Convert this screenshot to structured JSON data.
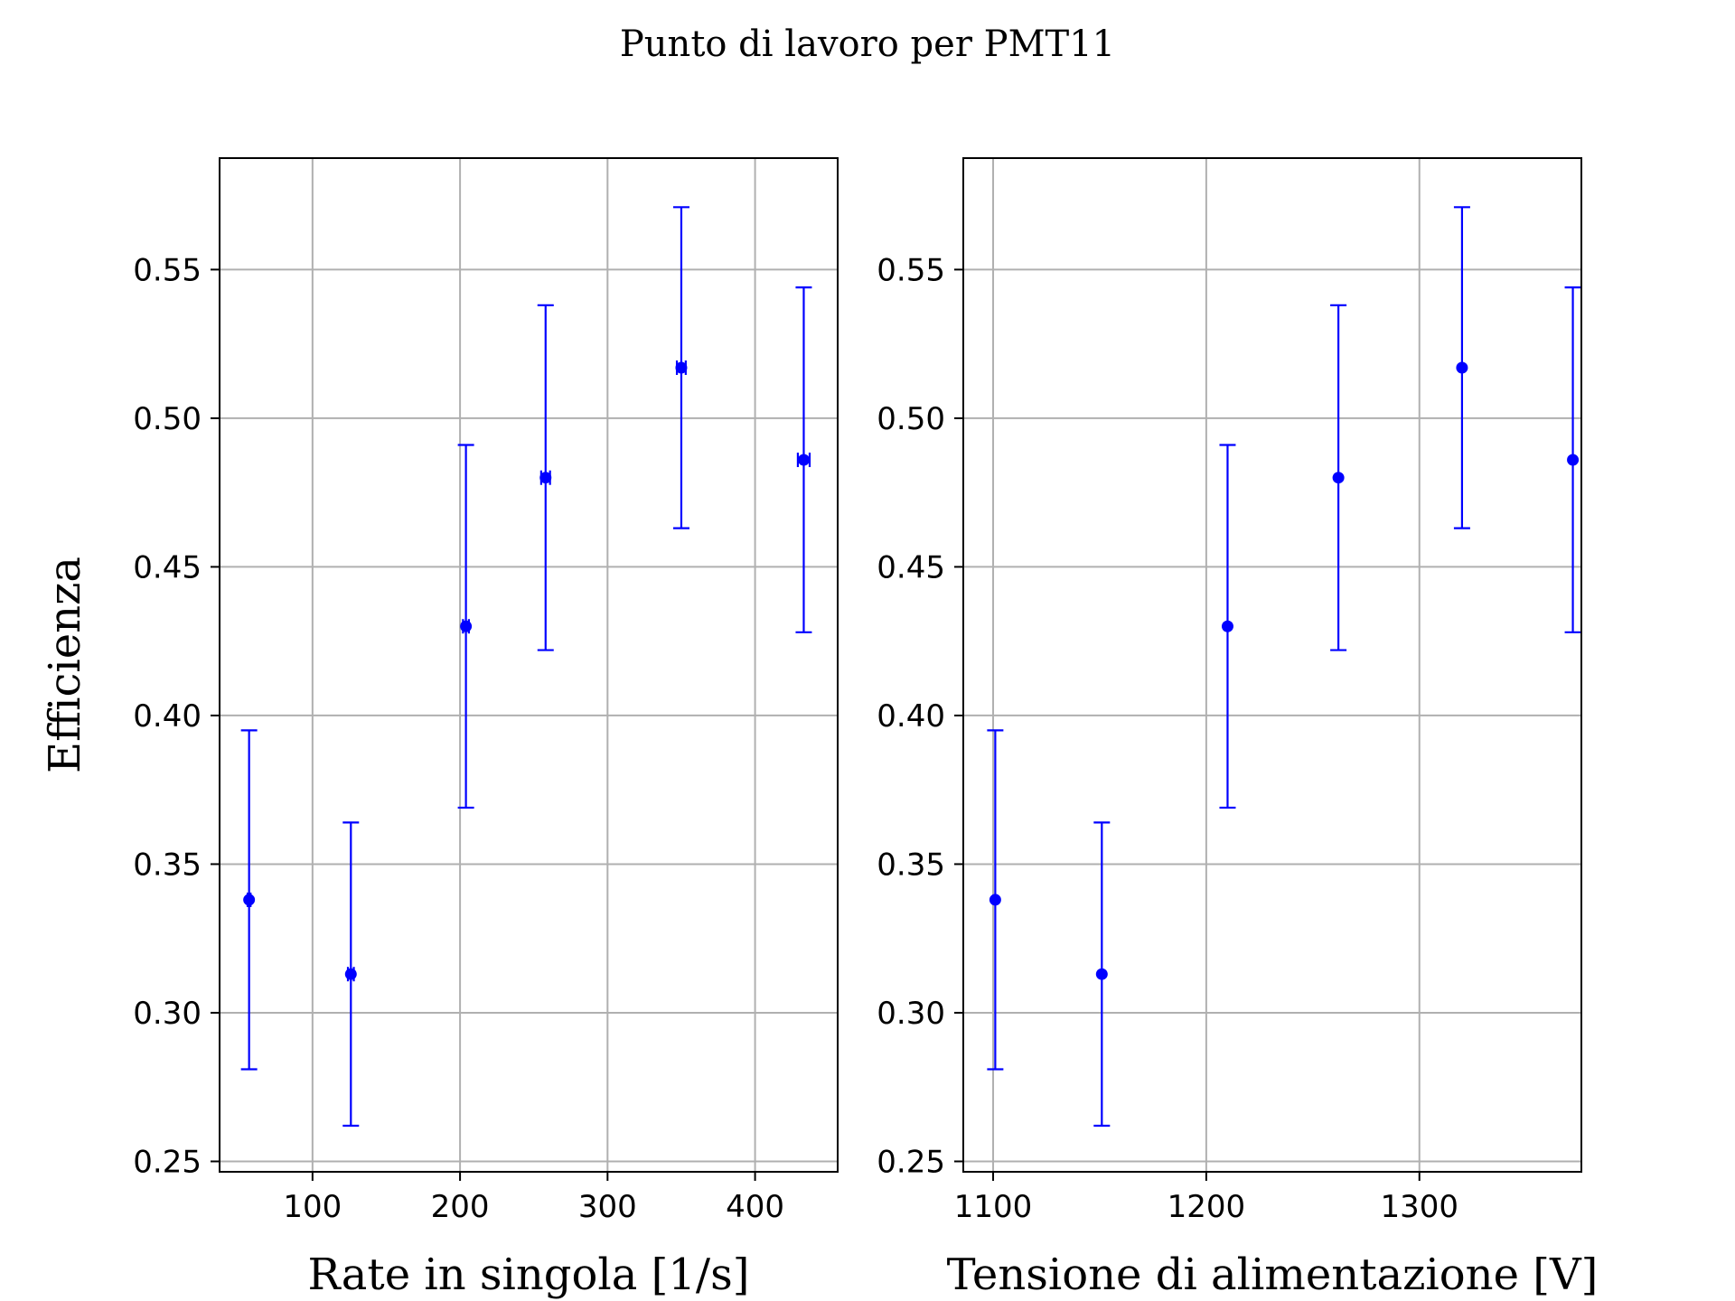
{
  "figure": {
    "suptitle": "Punto di lavoro per PMT11"
  },
  "style": {
    "point_color": "#0000ff",
    "grid_color": "#b0b0b0",
    "axis_color": "#000000"
  },
  "chart_data": [
    {
      "type": "scatter",
      "xlabel": "Rate in singola [1/s]",
      "ylabel": "Efficienza",
      "xlim": [
        37,
        456
      ],
      "ylim": [
        0.2465,
        0.5875
      ],
      "xticks": [
        100,
        200,
        300,
        400
      ],
      "xtick_labels": [
        "100",
        "200",
        "300",
        "400"
      ],
      "yticks": [
        0.25,
        0.3,
        0.35,
        0.4,
        0.45,
        0.5,
        0.55
      ],
      "ytick_labels": [
        "0.25",
        "0.30",
        "0.35",
        "0.40",
        "0.45",
        "0.50",
        "0.55"
      ],
      "grid": true,
      "series": [
        {
          "x": [
            57,
            126,
            204,
            258,
            350,
            433
          ],
          "y": [
            0.338,
            0.313,
            0.43,
            0.48,
            0.517,
            0.486
          ],
          "yerr": [
            0.057,
            0.051,
            0.061,
            0.058,
            0.054,
            0.058
          ],
          "xerr": [
            1,
            2,
            2,
            3,
            3,
            4
          ]
        }
      ]
    },
    {
      "type": "scatter",
      "xlabel": "Tensione di alimentazione [V]",
      "ylabel": "",
      "xlim": [
        1086,
        1376
      ],
      "ylim": [
        0.2465,
        0.5875
      ],
      "xticks": [
        1100,
        1200,
        1300
      ],
      "xtick_labels": [
        "1100",
        "1200",
        "1300"
      ],
      "yticks": [
        0.25,
        0.3,
        0.35,
        0.4,
        0.45,
        0.5,
        0.55
      ],
      "ytick_labels": [
        "0.25",
        "0.30",
        "0.35",
        "0.40",
        "0.45",
        "0.50",
        "0.55"
      ],
      "grid": true,
      "series": [
        {
          "x": [
            1101,
            1151,
            1210,
            1262,
            1320,
            1372
          ],
          "y": [
            0.338,
            0.313,
            0.43,
            0.48,
            0.517,
            0.486
          ],
          "yerr": [
            0.057,
            0.051,
            0.061,
            0.058,
            0.054,
            0.058
          ],
          "xerr": [
            0,
            0,
            0,
            0,
            0,
            0
          ]
        }
      ]
    }
  ]
}
